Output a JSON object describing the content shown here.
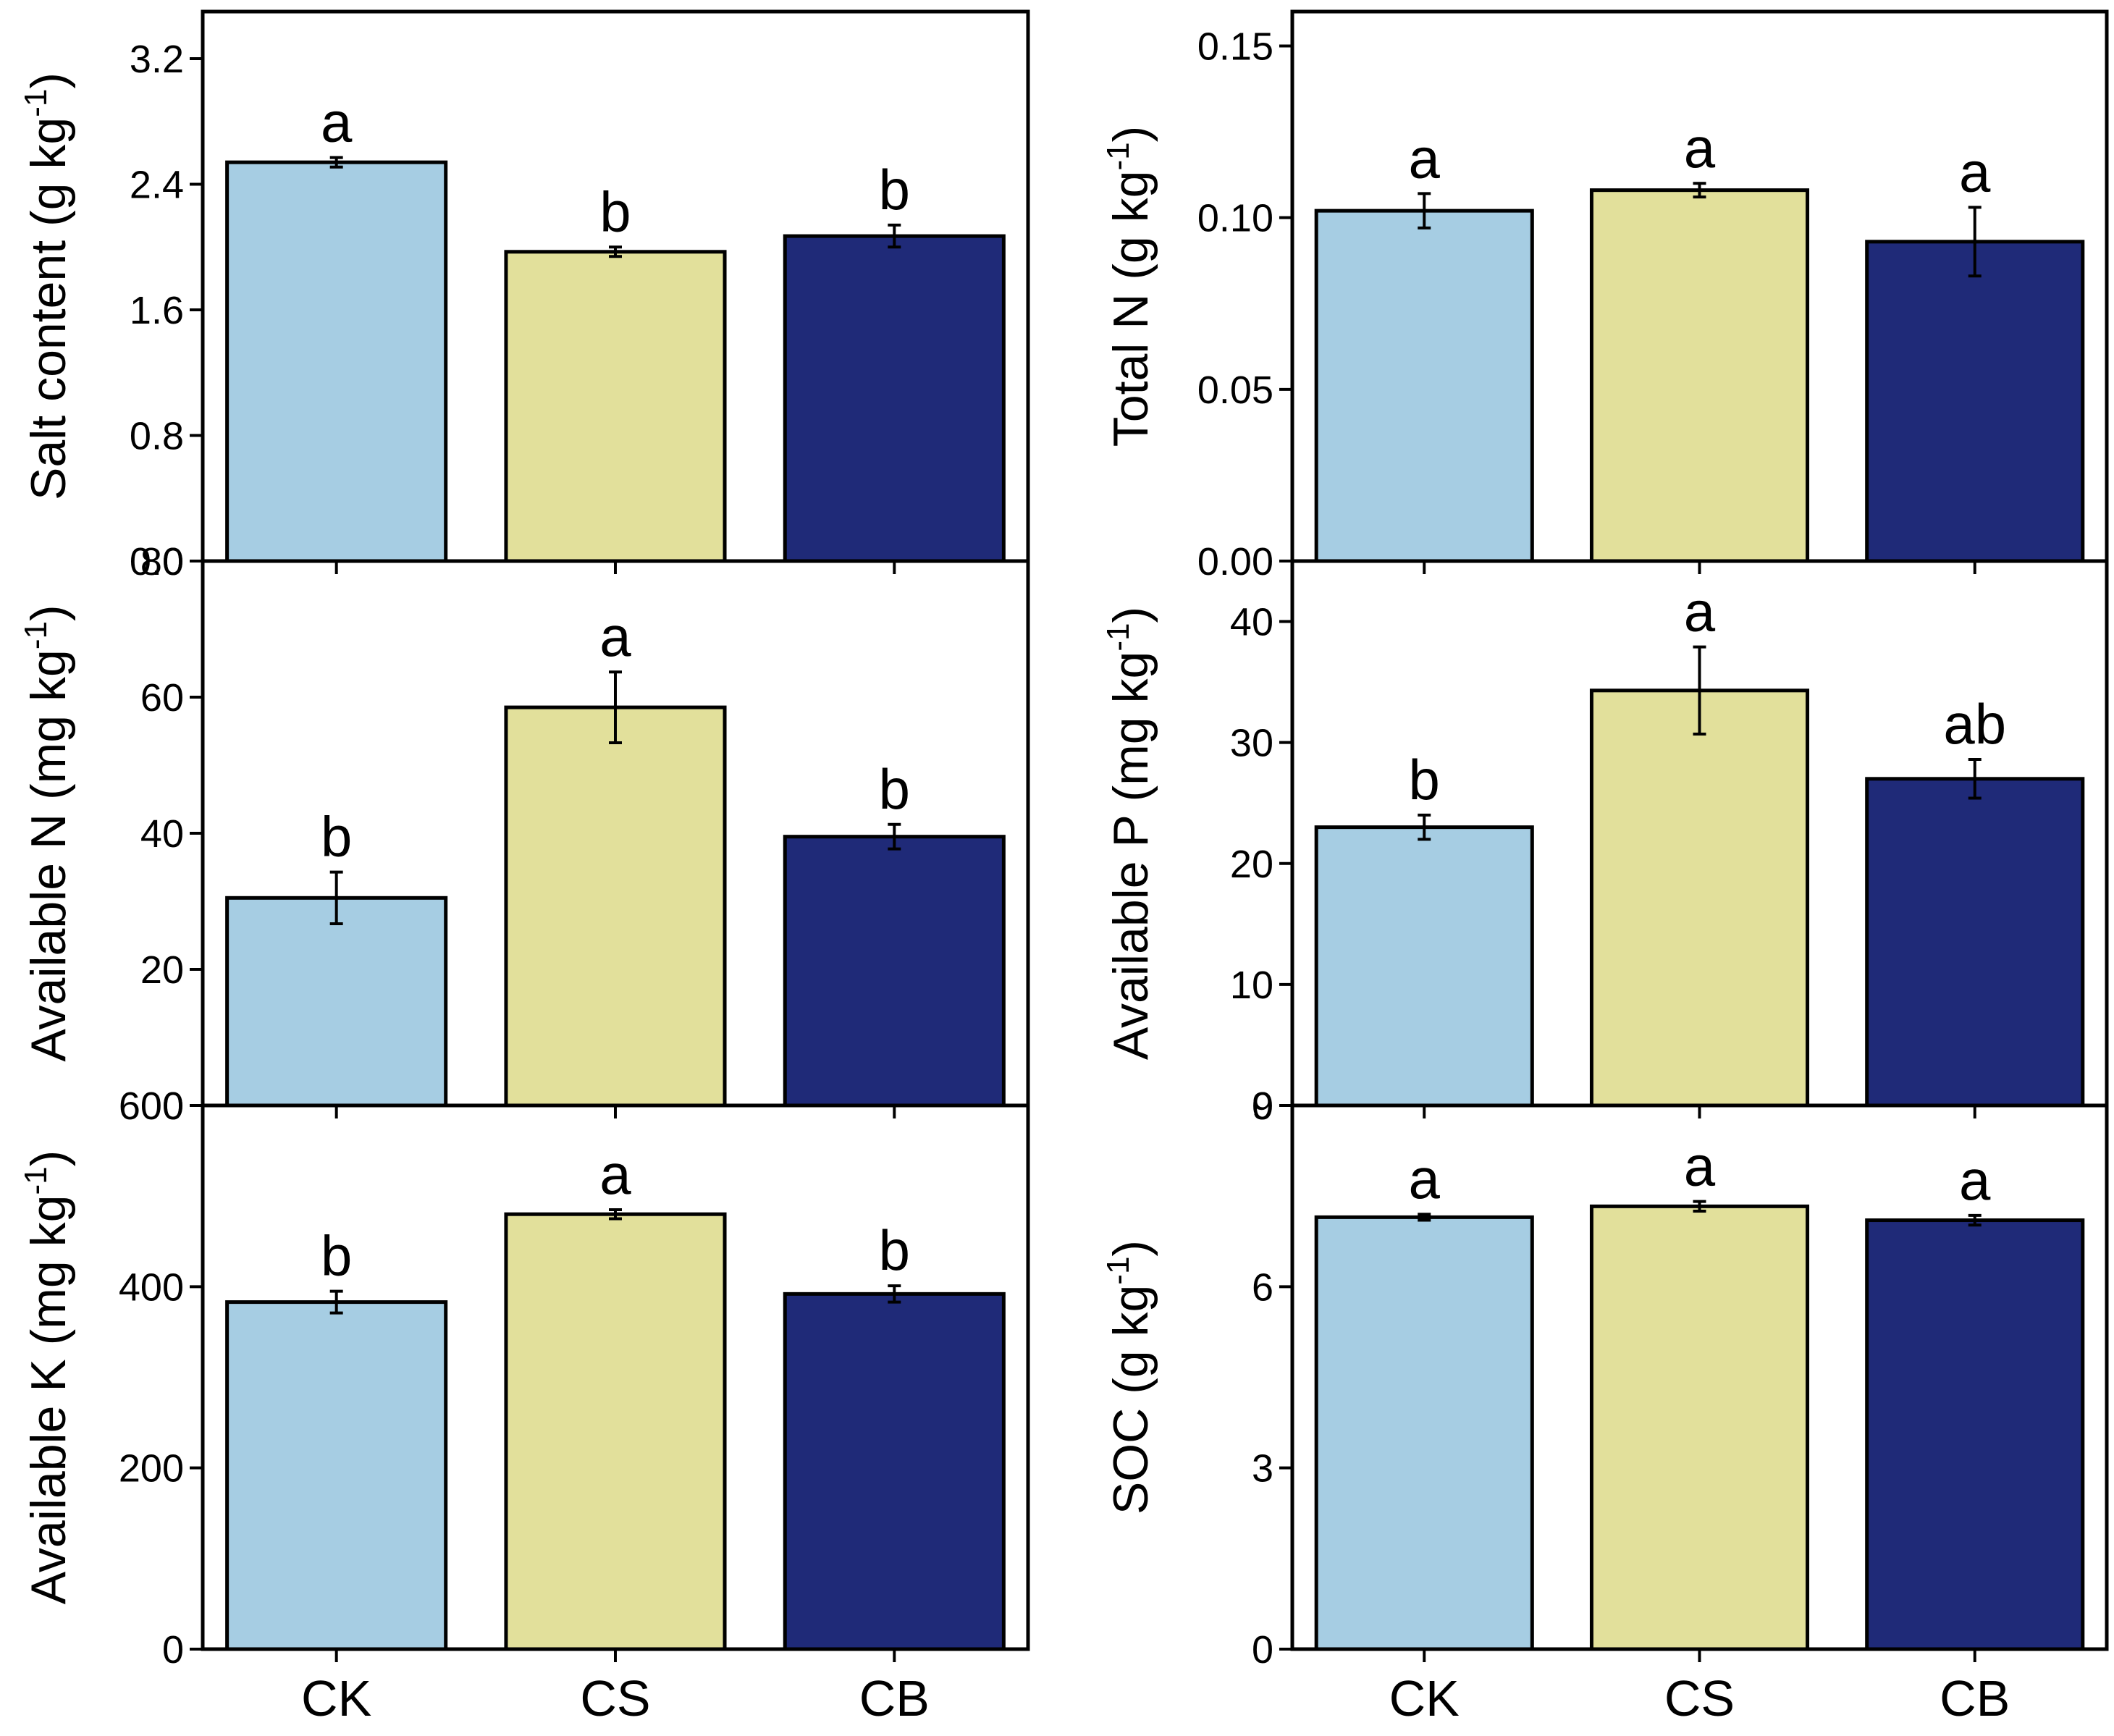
{
  "colors": {
    "CK": "#a6cde3",
    "CS": "#e2e09b",
    "CB": "#1f2a78",
    "axis": "#000000"
  },
  "chart_data": [
    {
      "id": "salt",
      "type": "bar",
      "ylabel": {
        "main": "Salt content (g kg",
        "sup": "-1",
        "close": ")"
      },
      "categories": [
        "CK",
        "CS",
        "CB"
      ],
      "values": [
        2.54,
        1.97,
        2.07
      ],
      "errors": [
        0.03,
        0.03,
        0.07
      ],
      "significance": [
        "a",
        "b",
        "b"
      ],
      "ylim": [
        0,
        3.5
      ],
      "yticks": [
        0,
        0.8,
        1.6,
        2.4,
        3.2
      ],
      "yticklabels": [
        "0.0",
        "0.8",
        "1.6",
        "2.4",
        "3.2"
      ],
      "show_xlabels": false
    },
    {
      "id": "totaln",
      "type": "bar",
      "ylabel": {
        "main": "Total N (g kg",
        "sup": "-1",
        "close": ")"
      },
      "categories": [
        "CK",
        "CS",
        "CB"
      ],
      "values": [
        0.102,
        0.108,
        0.093
      ],
      "errors": [
        0.005,
        0.002,
        0.01
      ],
      "significance": [
        "a",
        "a",
        "a"
      ],
      "ylim": [
        0,
        0.16
      ],
      "yticks": [
        0,
        0.05,
        0.1,
        0.15
      ],
      "yticklabels": [
        "0.00",
        "0.05",
        "0.10",
        "0.15"
      ],
      "show_xlabels": false
    },
    {
      "id": "availn",
      "type": "bar",
      "ylabel": {
        "main": "Available N (mg kg",
        "sup": "-1",
        "close": ")"
      },
      "categories": [
        "CK",
        "CS",
        "CB"
      ],
      "values": [
        30.5,
        58.5,
        39.5
      ],
      "errors": [
        3.8,
        5.2,
        1.8
      ],
      "significance": [
        "b",
        "a",
        "b"
      ],
      "ylim": [
        0,
        80
      ],
      "yticks": [
        0,
        20,
        40,
        60,
        80
      ],
      "yticklabels": [
        "0",
        "20",
        "40",
        "60",
        "80"
      ],
      "show_xlabels": false
    },
    {
      "id": "availp",
      "type": "bar",
      "ylabel": {
        "main": "Available P (mg kg",
        "sup": "-1",
        "close": ")"
      },
      "categories": [
        "CK",
        "CS",
        "CB"
      ],
      "values": [
        23.0,
        34.3,
        27.0
      ],
      "errors": [
        1.0,
        3.6,
        1.6
      ],
      "significance": [
        "b",
        "a",
        "ab"
      ],
      "ylim": [
        0,
        45
      ],
      "yticks": [
        0,
        10,
        20,
        30,
        40
      ],
      "yticklabels": [
        "0",
        "10",
        "20",
        "30",
        "40"
      ],
      "show_xlabels": false
    },
    {
      "id": "availk",
      "type": "bar",
      "ylabel": {
        "main": "Available K (mg kg",
        "sup": "-1",
        "close": ")"
      },
      "categories": [
        "CK",
        "CS",
        "CB"
      ],
      "values": [
        383,
        480,
        392
      ],
      "errors": [
        12,
        5,
        9
      ],
      "significance": [
        "b",
        "a",
        "b"
      ],
      "ylim": [
        0,
        600
      ],
      "yticks": [
        0,
        200,
        400,
        600
      ],
      "yticklabels": [
        "0",
        "200",
        "400",
        "600"
      ],
      "show_xlabels": true
    },
    {
      "id": "soc",
      "type": "bar",
      "ylabel": {
        "main": "SOC (g kg",
        "sup": "-1",
        "close": ")"
      },
      "categories": [
        "CK",
        "CS",
        "CB"
      ],
      "values": [
        7.15,
        7.33,
        7.1
      ],
      "errors": [
        0.05,
        0.08,
        0.08
      ],
      "significance": [
        "a",
        "a",
        "a"
      ],
      "ylim": [
        0,
        9
      ],
      "yticks": [
        0,
        3,
        6,
        9
      ],
      "yticklabels": [
        "0",
        "3",
        "6",
        "9"
      ],
      "show_xlabels": true
    }
  ]
}
